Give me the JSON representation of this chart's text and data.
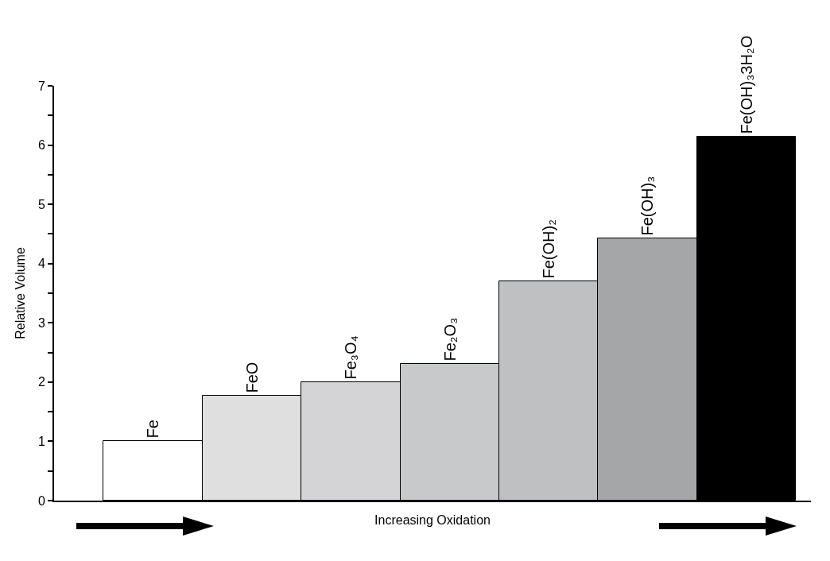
{
  "chart_data": {
    "type": "bar",
    "ylabel": "Relative Volume",
    "xlabel": "Increasing Oxidation",
    "categories": [
      "Fe",
      "FeO",
      "Fe₃O₄",
      "Fe₂O₃",
      "Fe(OH)₂",
      "Fe(OH)₃",
      "Fe(OH)₃3H₂O"
    ],
    "values": [
      1.0,
      1.77,
      2.0,
      2.3,
      3.7,
      4.43,
      6.14
    ],
    "colors": [
      "#ffffff",
      "#dfdfe0",
      "#d4d4d6",
      "#c8c9cb",
      "#bfc0c2",
      "#a5a6a8",
      "#000000"
    ],
    "ylim": [
      0,
      7
    ],
    "yticks": [
      0,
      {
        "value": 0.5,
        "label": null
      },
      1,
      {
        "value": 1.5,
        "label": null
      },
      2,
      {
        "value": 2.5,
        "label": null
      },
      3,
      {
        "value": 3.5,
        "label": null
      },
      4,
      {
        "value": 4.5,
        "label": null
      },
      5,
      {
        "value": 5.5,
        "label": null
      },
      6,
      {
        "value": 6.5,
        "label": null
      },
      7
    ],
    "grid": false
  }
}
